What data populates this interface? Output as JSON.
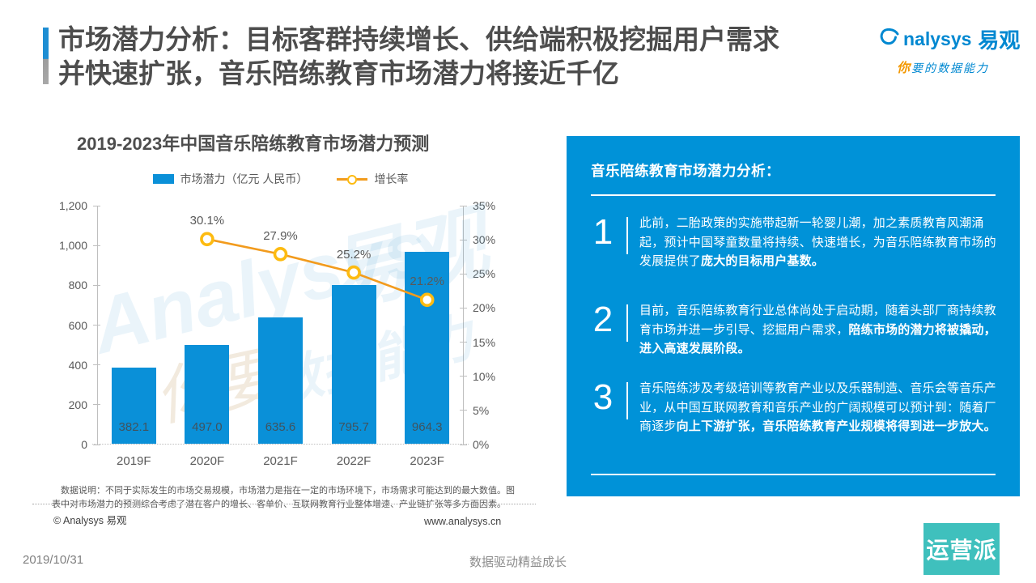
{
  "header": {
    "title": "市场潜力分析：目标客群持续增长、供给端积极挖掘用户需求\n并快速扩张，音乐陪练教育市场潜力将接近千亿",
    "logo": {
      "brand_text": "nalysys",
      "brand_cn": "易观",
      "tagline_accent": "你",
      "tagline_rest": "要的数据能力"
    }
  },
  "chart": {
    "title": "2019-2023年中国音乐陪练教育市场潜力预测",
    "legend": [
      {
        "label": "市场潜力（亿元 人民币）"
      },
      {
        "label": "增长率"
      }
    ],
    "note": "数据说明：不同于实际发生的市场交易规模，市场潜力是指在一定的市场环境下，市场需求可能达到的最大数值。图表中对市场潜力的预测综合考虑了潜在客户的增长、客单价、互联网教育行业整体增速、产业链扩张等多方面因素。"
  },
  "chart_data": {
    "type": "bar",
    "title": "2019-2023年中国音乐陪练教育市场潜力预测",
    "categories": [
      "2019F",
      "2020F",
      "2021F",
      "2022F",
      "2023F"
    ],
    "series": [
      {
        "name": "市场潜力（亿元 人民币）",
        "type": "bar",
        "axis": "left",
        "values": [
          382.1,
          497.0,
          635.6,
          795.7,
          964.3
        ],
        "labels": [
          "382.1",
          "497.0",
          "635.6",
          "795.7",
          "964.3"
        ],
        "color": "#0a90d8"
      },
      {
        "name": "增长率",
        "type": "line",
        "axis": "right",
        "values": [
          null,
          30.1,
          27.9,
          25.2,
          21.2
        ],
        "labels": [
          "30.1%",
          "27.9%",
          "25.2%",
          "21.2%"
        ],
        "color": "#f29b1d",
        "marker_color": "#fdbb11"
      }
    ],
    "left_axis": {
      "min": 0,
      "max": 1200,
      "ticks": [
        "0",
        "200",
        "400",
        "600",
        "800",
        "1,000",
        "1,200"
      ]
    },
    "right_axis": {
      "min": 0,
      "max": 35,
      "ticks": [
        "0%",
        "5%",
        "10%",
        "15%",
        "20%",
        "25%",
        "30%",
        "35%"
      ]
    },
    "grid": false,
    "legend_position": "top"
  },
  "watermark": {
    "text1": "Analysys",
    "text2": "易观",
    "text3": "数据能力",
    "text4": "你要"
  },
  "panel": {
    "heading": "音乐陪练教育市场潜力分析：",
    "points": [
      {
        "num": "1",
        "text": "此前，二胎政策的实施带起新一轮婴儿潮，加之素质教育风潮涌起，预计中国琴童数量将持续、快速增长，为音乐陪练教育市场的发展提供了",
        "bold": "庞大的目标用户基数。"
      },
      {
        "num": "2",
        "text": "目前，音乐陪练教育行业总体尚处于启动期，随着头部厂商持续教育市场并进一步引导、挖掘用户需求，",
        "bold": "陪练市场的潜力将被撬动，进入高速发展阶段。"
      },
      {
        "num": "3",
        "text": "音乐陪练涉及考级培训等教育产业以及乐器制造、音乐会等音乐产业，从中国互联网教育和音乐产业的广阔规模可以预计到：随着厂商逐步",
        "bold": "向上下游扩张，音乐陪练教育产业规模将得到进一步放大。"
      }
    ]
  },
  "footer": {
    "copyright": "© Analysys 易观",
    "site": "www.analysys.cn",
    "date": "2019/10/31",
    "slogan": "数据驱动精益成长",
    "badge": "运营派"
  },
  "colors": {
    "bar_blue": "#0a90d8",
    "panel_blue": "#0092d8",
    "line_orange": "#f29b1d",
    "marker_gold": "#fdbb11",
    "badge_teal": "#3fc0bd",
    "brand_blue": "#0088d1",
    "tagline_orange": "#f39800"
  }
}
